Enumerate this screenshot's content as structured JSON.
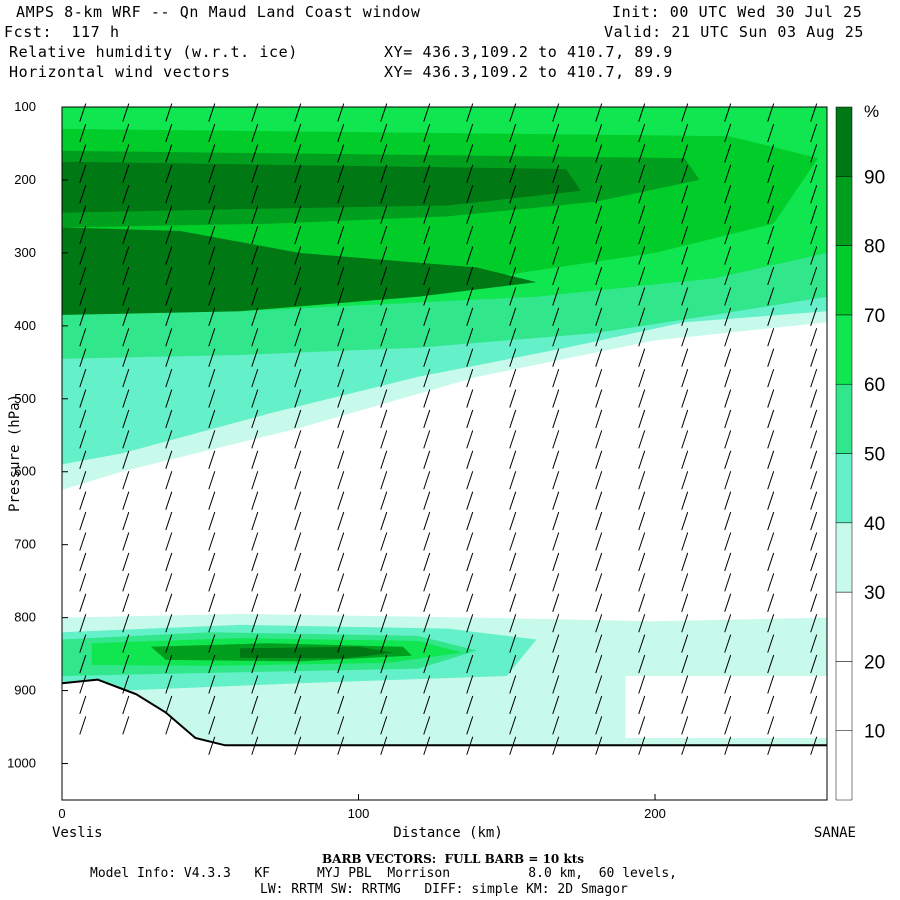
{
  "header": {
    "title_line": "AMPS 8-km WRF -- Qn Maud Land Coast window",
    "fcst_line": "Fcst:  117 h",
    "field1_name": "Relative humidity (w.r.t. ice)",
    "field1_xy": "XY= 436.3,109.2 to 410.7, 89.9",
    "field2_name": "Horizontal wind vectors",
    "field2_xy": "XY= 436.3,109.2 to 410.7, 89.9",
    "init_line": "Init: 00 UTC Wed 30 Jul 25",
    "valid_line": "Valid: 21 UTC Sun 03 Aug 25"
  },
  "chart_data": {
    "type": "heatmap",
    "title": "Relative humidity (w.r.t. ice) / Horizontal wind vectors",
    "xlabel": "Distance (km)",
    "ylabel": "Pressure (hPa)",
    "xlim": [
      0,
      258
    ],
    "ylim": [
      1050,
      100
    ],
    "x_ticks": [
      0,
      100,
      200
    ],
    "y_ticks": [
      100,
      200,
      300,
      400,
      500,
      600,
      700,
      800,
      900,
      1000
    ],
    "left_endpoint": "Veslis",
    "right_endpoint": "SANAE",
    "colorbar": {
      "unit": "%",
      "levels": [
        10,
        20,
        30,
        40,
        50,
        60,
        70,
        80,
        90
      ],
      "colors": [
        "#ffffff",
        "#ffffff",
        "#ffffff",
        "#c8faec",
        "#64f0c8",
        "#32e68c",
        "#10e650",
        "#00cd2a",
        "#00a01e",
        "#007814"
      ]
    },
    "rh_regions": [
      {
        "level": 30,
        "desc": "band",
        "x": [
          0,
          258
        ],
        "p_top": 100,
        "p_bot": 620
      },
      {
        "level": 30,
        "desc": "low",
        "x": [
          0,
          258
        ],
        "p_top": 800,
        "p_bot": 975
      }
    ],
    "terrain": [
      [
        0,
        890
      ],
      [
        12,
        885
      ],
      [
        25,
        905
      ],
      [
        35,
        930
      ],
      [
        45,
        965
      ],
      [
        55,
        975
      ],
      [
        100,
        975
      ],
      [
        258,
        975
      ]
    ],
    "barbs": {
      "full_barb_kts": 10
    }
  },
  "footer": {
    "barb_note": "BARB VECTORS:  FULL BARB = 10 kts",
    "model_info_1": "Model Info: V4.3.3   KF      MYJ PBL  Morrison          8.0 km,  60 levels,",
    "model_info_2": "LW: RRTM SW: RRTMG   DIFF: simple KM: 2D Smagor"
  }
}
